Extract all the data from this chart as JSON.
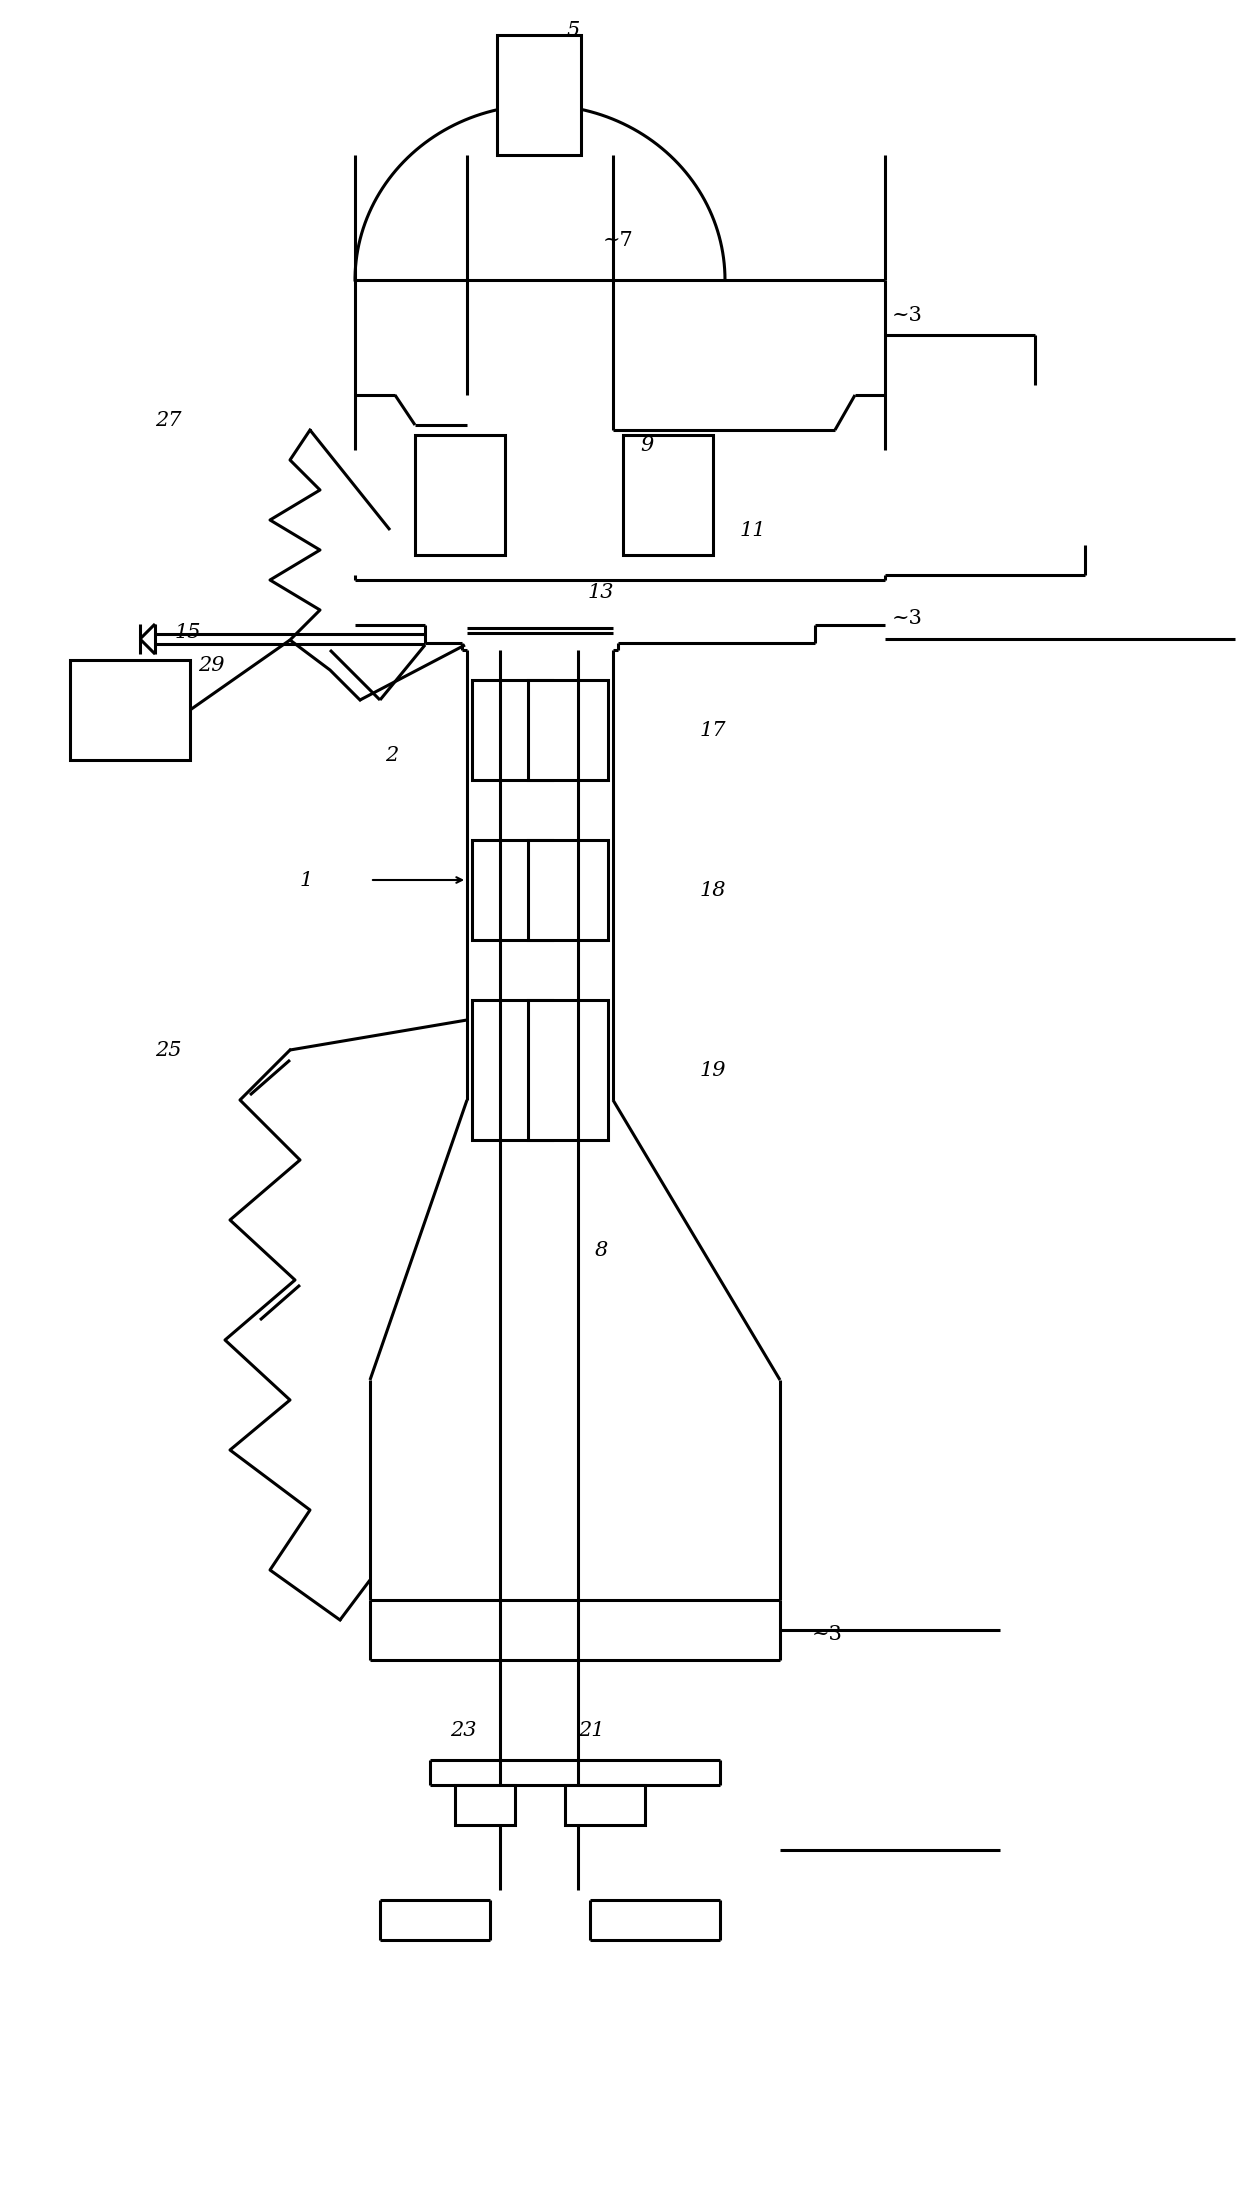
{
  "bg": "#ffffff",
  "lc": "#000000",
  "lw": 2.2,
  "fs": 15,
  "figw": 12.4,
  "figh": 21.97,
  "dpi": 100
}
